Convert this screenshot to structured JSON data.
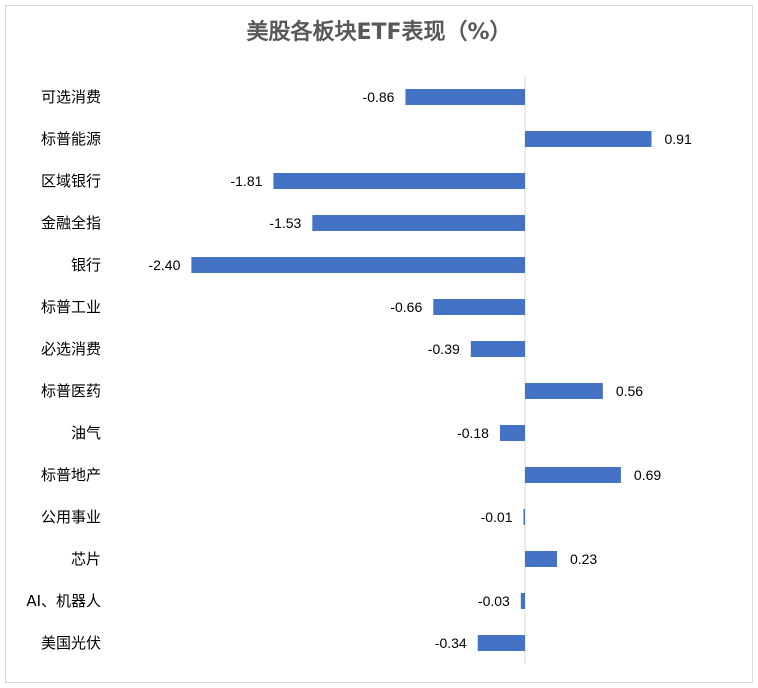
{
  "chart_data": {
    "type": "bar",
    "orientation": "horizontal",
    "title": "美股各板块ETF表现（%）",
    "categories": [
      "可选消费",
      "标普能源",
      "区域银行",
      "金融全指",
      "银行",
      "标普工业",
      "必选消费",
      "标普医药",
      "油气",
      "标普地产",
      "公用事业",
      "芯片",
      "AI、机器人",
      "美国光伏"
    ],
    "values": [
      -0.86,
      0.91,
      -1.81,
      -1.53,
      -2.4,
      -0.66,
      -0.39,
      0.56,
      -0.18,
      0.69,
      -0.01,
      0.23,
      -0.03,
      -0.34
    ],
    "value_labels": [
      "-0.86",
      "0.91",
      "-1.81",
      "-1.53",
      "-2.40",
      "-0.66",
      "-0.39",
      "0.56",
      "-0.18",
      "0.69",
      "-0.01",
      "0.23",
      "-0.03",
      "-0.34"
    ],
    "xlim": [
      -2.4,
      0.91
    ],
    "grid": false,
    "legend": "none",
    "bar_color": "#4472C4"
  }
}
